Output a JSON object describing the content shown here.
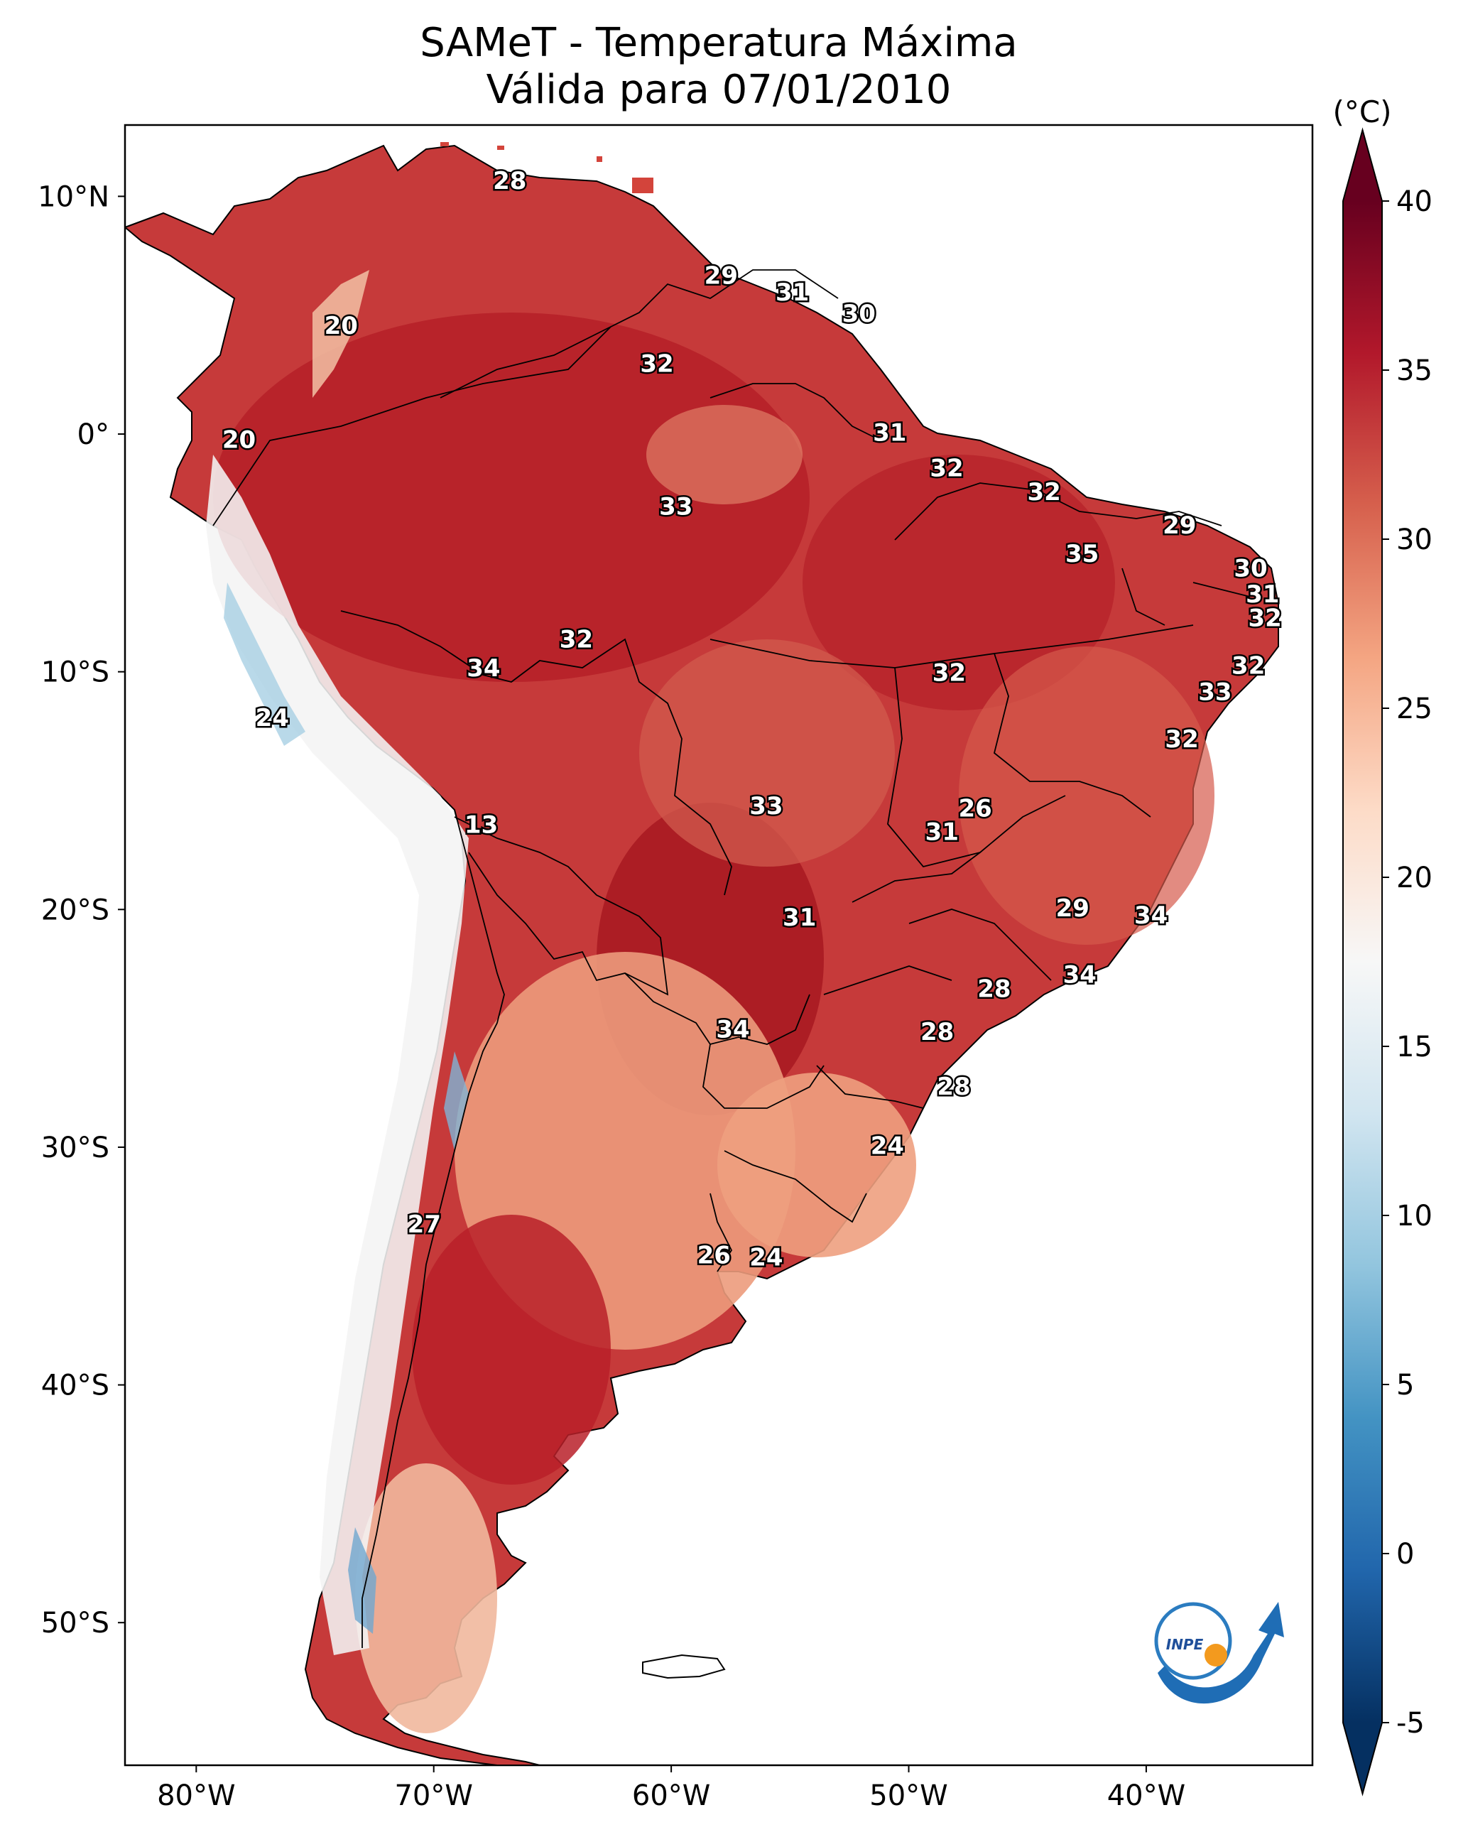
{
  "title": {
    "line1": "SAMeT - Temperatura Máxima",
    "line2": "Válida para 07/01/2010"
  },
  "map": {
    "region": "South America",
    "lon_range": [
      -83,
      -33
    ],
    "lat_range": [
      -56,
      13
    ],
    "lon_ticks": [
      {
        "value": -80,
        "label": "80°W"
      },
      {
        "value": -70,
        "label": "70°W"
      },
      {
        "value": -60,
        "label": "60°W"
      },
      {
        "value": -50,
        "label": "50°W"
      },
      {
        "value": -40,
        "label": "40°W"
      }
    ],
    "lat_ticks": [
      {
        "value": 10,
        "label": "10°N"
      },
      {
        "value": 0,
        "label": "0°"
      },
      {
        "value": -10,
        "label": "10°S"
      },
      {
        "value": -20,
        "label": "20°S"
      },
      {
        "value": -30,
        "label": "30°S"
      },
      {
        "value": -40,
        "label": "40°S"
      },
      {
        "value": -50,
        "label": "50°S"
      }
    ],
    "point_labels": [
      {
        "text": "28",
        "lon": -66.8,
        "lat": 10.6
      },
      {
        "text": "29",
        "lon": -57.9,
        "lat": 6.6
      },
      {
        "text": "31",
        "lon": -54.9,
        "lat": 5.9
      },
      {
        "text": "30",
        "lon": -52.1,
        "lat": 5.0
      },
      {
        "text": "20",
        "lon": -73.9,
        "lat": 4.5
      },
      {
        "text": "32",
        "lon": -60.6,
        "lat": 2.9
      },
      {
        "text": "20",
        "lon": -78.2,
        "lat": -0.3
      },
      {
        "text": "31",
        "lon": -50.8,
        "lat": 0.0
      },
      {
        "text": "32",
        "lon": -48.4,
        "lat": -1.5
      },
      {
        "text": "32",
        "lon": -44.3,
        "lat": -2.5
      },
      {
        "text": "33",
        "lon": -59.8,
        "lat": -3.1
      },
      {
        "text": "29",
        "lon": -38.6,
        "lat": -3.9
      },
      {
        "text": "35",
        "lon": -42.7,
        "lat": -5.1
      },
      {
        "text": "30",
        "lon": -35.6,
        "lat": -5.7
      },
      {
        "text": "31",
        "lon": -35.1,
        "lat": -6.8
      },
      {
        "text": "32",
        "lon": -35.0,
        "lat": -7.8
      },
      {
        "text": "32",
        "lon": -64.0,
        "lat": -8.7
      },
      {
        "text": "34",
        "lon": -67.9,
        "lat": -9.9
      },
      {
        "text": "32",
        "lon": -35.7,
        "lat": -9.8
      },
      {
        "text": "32",
        "lon": -48.3,
        "lat": -10.1
      },
      {
        "text": "33",
        "lon": -37.1,
        "lat": -10.9
      },
      {
        "text": "24",
        "lon": -76.8,
        "lat": -12.0
      },
      {
        "text": "32",
        "lon": -38.5,
        "lat": -12.9
      },
      {
        "text": "33",
        "lon": -56.0,
        "lat": -15.7
      },
      {
        "text": "26",
        "lon": -47.2,
        "lat": -15.8
      },
      {
        "text": "13",
        "lon": -68.0,
        "lat": -16.5
      },
      {
        "text": "31",
        "lon": -48.6,
        "lat": -16.8
      },
      {
        "text": "29",
        "lon": -43.1,
        "lat": -20.0
      },
      {
        "text": "34",
        "lon": -39.8,
        "lat": -20.3
      },
      {
        "text": "31",
        "lon": -54.6,
        "lat": -20.4
      },
      {
        "text": "34",
        "lon": -42.8,
        "lat": -22.8
      },
      {
        "text": "28",
        "lon": -46.4,
        "lat": -23.4
      },
      {
        "text": "34",
        "lon": -57.4,
        "lat": -25.1
      },
      {
        "text": "28",
        "lon": -48.8,
        "lat": -25.2
      },
      {
        "text": "28",
        "lon": -48.1,
        "lat": -27.5
      },
      {
        "text": "24",
        "lon": -50.9,
        "lat": -30.0
      },
      {
        "text": "27",
        "lon": -70.4,
        "lat": -33.3
      },
      {
        "text": "26",
        "lon": -58.2,
        "lat": -34.6
      },
      {
        "text": "24",
        "lon": -56.0,
        "lat": -34.7
      }
    ]
  },
  "colorbar": {
    "unit": "(°C)",
    "min": -5,
    "max": 40,
    "ticks": [
      "40",
      "35",
      "30",
      "25",
      "20",
      "15",
      "10",
      "5",
      "0",
      "-5"
    ],
    "colors": [
      "#053061",
      "#2166ac",
      "#4393c3",
      "#92c5de",
      "#d1e5f0",
      "#f7f7f7",
      "#fddbc7",
      "#f4a582",
      "#d6604d",
      "#b2182b",
      "#67001f"
    ]
  },
  "logo": {
    "text": "INPE",
    "icon": "inpe-logo-icon"
  }
}
